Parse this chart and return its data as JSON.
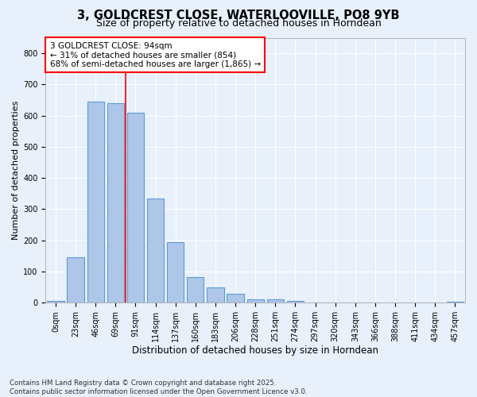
{
  "title": "3, GOLDCREST CLOSE, WATERLOOVILLE, PO8 9YB",
  "subtitle": "Size of property relative to detached houses in Horndean",
  "xlabel": "Distribution of detached houses by size in Horndean",
  "ylabel": "Number of detached properties",
  "footnote": "Contains HM Land Registry data © Crown copyright and database right 2025.\nContains public sector information licensed under the Open Government Licence v3.0.",
  "bar_labels": [
    "0sqm",
    "23sqm",
    "46sqm",
    "69sqm",
    "91sqm",
    "114sqm",
    "137sqm",
    "160sqm",
    "183sqm",
    "206sqm",
    "228sqm",
    "251sqm",
    "274sqm",
    "297sqm",
    "320sqm",
    "343sqm",
    "366sqm",
    "388sqm",
    "411sqm",
    "434sqm",
    "457sqm"
  ],
  "bar_values": [
    5,
    145,
    645,
    640,
    610,
    335,
    195,
    82,
    50,
    28,
    10,
    12,
    5,
    0,
    0,
    0,
    0,
    0,
    0,
    0,
    2
  ],
  "bar_color": "#aec6e8",
  "bar_edge_color": "#5b9bd5",
  "bar_edge_width": 0.8,
  "vline_x": 3.5,
  "vline_color": "red",
  "vline_linewidth": 1.2,
  "annotation_text": "3 GOLDCREST CLOSE: 94sqm\n← 31% of detached houses are smaller (854)\n68% of semi-detached houses are larger (1,865) →",
  "annotation_box_color": "white",
  "annotation_box_edgecolor": "red",
  "ylim": [
    0,
    850
  ],
  "yticks": [
    0,
    100,
    200,
    300,
    400,
    500,
    600,
    700,
    800
  ],
  "bg_color": "#e8f0fb",
  "plot_bg_color": "#e8f0fb",
  "grid_color": "white",
  "title_fontsize": 10.5,
  "subtitle_fontsize": 9,
  "xlabel_fontsize": 8.5,
  "ylabel_fontsize": 8,
  "tick_fontsize": 7,
  "annotation_fontsize": 7.5
}
